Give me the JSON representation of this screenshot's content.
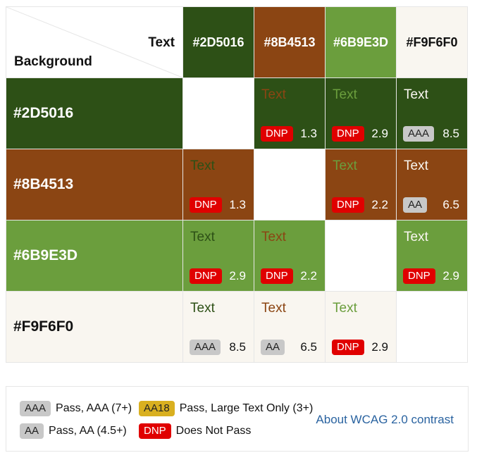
{
  "header": {
    "text_label": "Text",
    "background_label": "Background"
  },
  "colors": [
    "#2D5016",
    "#8B4513",
    "#6B9E3D",
    "#F9F6F0"
  ],
  "sample_text": "Text",
  "rows": [
    {
      "bg": "#2D5016",
      "cells": [
        null,
        {
          "fg": "#8B4513",
          "badge": "DNP",
          "ratio": "1.3"
        },
        {
          "fg": "#6B9E3D",
          "badge": "DNP",
          "ratio": "2.9"
        },
        {
          "fg": "#F9F6F0",
          "badge": "AAA",
          "ratio": "8.5"
        }
      ]
    },
    {
      "bg": "#8B4513",
      "cells": [
        {
          "fg": "#2D5016",
          "badge": "DNP",
          "ratio": "1.3"
        },
        null,
        {
          "fg": "#6B9E3D",
          "badge": "DNP",
          "ratio": "2.2"
        },
        {
          "fg": "#F9F6F0",
          "badge": "AA",
          "ratio": "6.5"
        }
      ]
    },
    {
      "bg": "#6B9E3D",
      "cells": [
        {
          "fg": "#2D5016",
          "badge": "DNP",
          "ratio": "2.9"
        },
        {
          "fg": "#8B4513",
          "badge": "DNP",
          "ratio": "2.2"
        },
        null,
        {
          "fg": "#F9F6F0",
          "badge": "DNP",
          "ratio": "2.9"
        }
      ]
    },
    {
      "bg": "#F9F6F0",
      "cells": [
        {
          "fg": "#2D5016",
          "badge": "AAA",
          "ratio": "8.5"
        },
        {
          "fg": "#8B4513",
          "badge": "AA",
          "ratio": "6.5"
        },
        {
          "fg": "#6B9E3D",
          "badge": "DNP",
          "ratio": "2.9"
        },
        null
      ]
    }
  ],
  "legend": {
    "items": [
      {
        "badge": "AAA",
        "text": "Pass, AAA (7+)"
      },
      {
        "badge": "AA18",
        "text": "Pass, Large Text Only (3+)"
      },
      {
        "badge": "AA",
        "text": "Pass, AA (4.5+)"
      },
      {
        "badge": "DNP",
        "text": "Does Not Pass"
      }
    ],
    "link": "About WCAG 2.0 contrast"
  }
}
